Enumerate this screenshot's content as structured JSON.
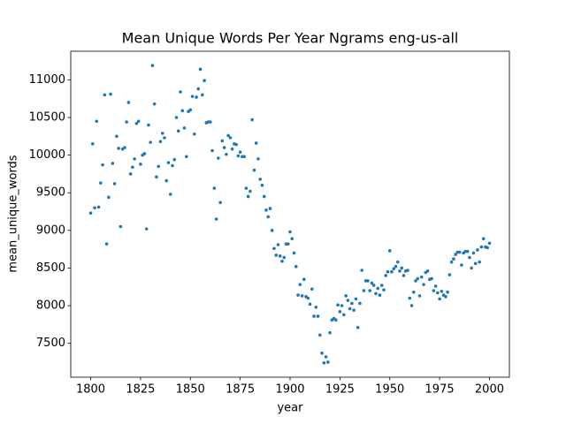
{
  "chart_data": {
    "type": "scatter",
    "title": "Mean Unique Words Per Year Ngrams eng-us-all",
    "x_label": "year",
    "y_label": "mean_unique_words",
    "color": "#1f77b4",
    "grid": false,
    "xlim": [
      1790,
      2010
    ],
    "xticks": [
      1800,
      1825,
      1850,
      1875,
      1900,
      1925,
      1950,
      1975,
      2000
    ],
    "ylim": [
      7050,
      11380
    ],
    "yticks": [
      7500,
      8000,
      8500,
      9000,
      9500,
      10000,
      10500,
      11000
    ],
    "x": [
      1800,
      1801,
      1802,
      1803,
      1804,
      1805,
      1806,
      1807,
      1808,
      1809,
      1810,
      1811,
      1812,
      1813,
      1814,
      1815,
      1816,
      1817,
      1818,
      1819,
      1820,
      1821,
      1822,
      1823,
      1824,
      1825,
      1826,
      1827,
      1828,
      1829,
      1830,
      1831,
      1832,
      1833,
      1834,
      1835,
      1836,
      1837,
      1838,
      1839,
      1840,
      1841,
      1842,
      1843,
      1844,
      1845,
      1846,
      1847,
      1848,
      1849,
      1850,
      1851,
      1852,
      1853,
      1854,
      1855,
      1856,
      1857,
      1858,
      1859,
      1860,
      1861,
      1862,
      1863,
      1864,
      1865,
      1866,
      1867,
      1868,
      1869,
      1870,
      1871,
      1872,
      1873,
      1874,
      1875,
      1876,
      1877,
      1878,
      1879,
      1880,
      1881,
      1882,
      1883,
      1884,
      1885,
      1886,
      1887,
      1888,
      1889,
      1890,
      1891,
      1892,
      1893,
      1894,
      1895,
      1896,
      1897,
      1898,
      1899,
      1900,
      1901,
      1902,
      1903,
      1904,
      1905,
      1906,
      1907,
      1908,
      1909,
      1910,
      1911,
      1912,
      1913,
      1914,
      1915,
      1916,
      1917,
      1918,
      1919,
      1920,
      1921,
      1922,
      1923,
      1924,
      1925,
      1926,
      1927,
      1928,
      1929,
      1930,
      1931,
      1932,
      1933,
      1934,
      1935,
      1936,
      1937,
      1938,
      1939,
      1940,
      1941,
      1942,
      1943,
      1944,
      1945,
      1946,
      1947,
      1948,
      1949,
      1950,
      1951,
      1952,
      1953,
      1954,
      1955,
      1956,
      1957,
      1958,
      1959,
      1960,
      1961,
      1962,
      1963,
      1964,
      1965,
      1966,
      1967,
      1968,
      1969,
      1970,
      1971,
      1972,
      1973,
      1974,
      1975,
      1976,
      1977,
      1978,
      1979,
      1980,
      1981,
      1982,
      1983,
      1984,
      1985,
      1986,
      1987,
      1988,
      1989,
      1990,
      1991,
      1992,
      1993,
      1994,
      1995,
      1996,
      1997,
      1998,
      1999,
      2000
    ],
    "values": [
      9230,
      10150,
      9300,
      10450,
      9310,
      9630,
      9870,
      10800,
      8820,
      9440,
      10810,
      9890,
      9620,
      10250,
      10090,
      9050,
      10080,
      10100,
      10440,
      10700,
      9750,
      9840,
      9950,
      10420,
      10450,
      9880,
      10000,
      10020,
      9020,
      10400,
      10170,
      11190,
      10680,
      9710,
      9850,
      10180,
      10290,
      10230,
      9660,
      9900,
      9480,
      9860,
      9940,
      10500,
      10320,
      10840,
      10590,
      10360,
      9980,
      10580,
      10600,
      10780,
      10280,
      10770,
      10880,
      11140,
      10800,
      10990,
      10430,
      10440,
      10440,
      10060,
      9560,
      9150,
      9960,
      9370,
      10190,
      10100,
      10010,
      10260,
      10230,
      10080,
      10150,
      10140,
      9990,
      10040,
      9980,
      9980,
      9560,
      9450,
      9520,
      10470,
      9800,
      10160,
      9950,
      9680,
      9600,
      9450,
      9270,
      9180,
      9290,
      9000,
      8760,
      8670,
      8810,
      8660,
      8590,
      8640,
      8820,
      8820,
      8980,
      8890,
      8700,
      8520,
      8140,
      8280,
      8130,
      8350,
      8120,
      8100,
      8020,
      8220,
      7860,
      7980,
      7860,
      7610,
      7370,
      7240,
      7320,
      7250,
      7640,
      7810,
      7830,
      7810,
      8010,
      7920,
      8000,
      7880,
      8130,
      8070,
      7960,
      8030,
      7940,
      8090,
      7710,
      8030,
      8470,
      8200,
      8330,
      8330,
      8200,
      8300,
      8270,
      8160,
      8230,
      8140,
      8270,
      8210,
      8400,
      8450,
      8730,
      8450,
      8490,
      8520,
      8580,
      8460,
      8500,
      8400,
      8460,
      8470,
      8100,
      8000,
      8180,
      8330,
      8360,
      8130,
      8380,
      8280,
      8440,
      8460,
      8350,
      8360,
      8200,
      8260,
      8170,
      8090,
      8190,
      8140,
      8120,
      8180,
      8410,
      8580,
      8620,
      8680,
      8710,
      8710,
      8540,
      8700,
      8720,
      8720,
      8640,
      8500,
      8700,
      8560,
      8740,
      8580,
      8780,
      8890,
      8780,
      8770,
      8830
    ]
  }
}
